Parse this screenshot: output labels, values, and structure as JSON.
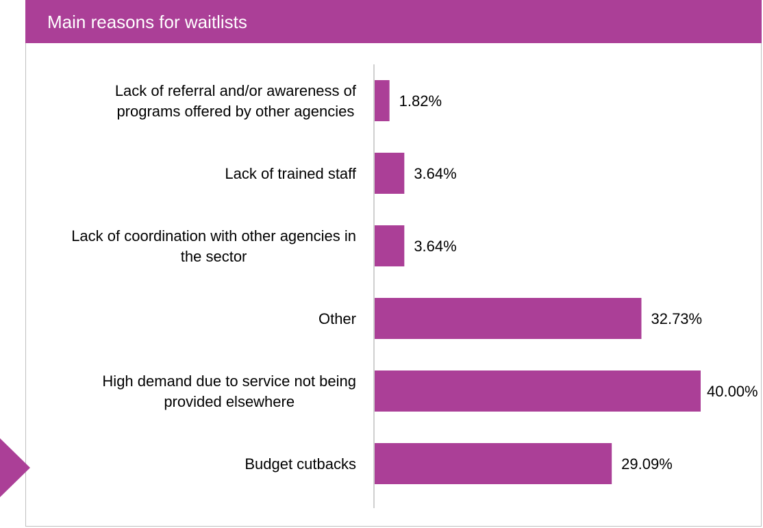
{
  "header": {
    "title": "Main reasons for waitlists"
  },
  "colors": {
    "accent": "#ab3f97",
    "bar": "#ab3f97",
    "axis": "#bfbfbf"
  },
  "chart_data": {
    "type": "bar",
    "orientation": "horizontal",
    "title": "Main reasons for waitlists",
    "categories": [
      [
        "Lack of referral and/or awareness of",
        "programs offered by other agencies"
      ],
      [
        "Lack of trained staff"
      ],
      [
        "Lack of coordination with other agencies in",
        "the sector"
      ],
      [
        "Other"
      ],
      [
        "High demand due to service not being",
        "provided elsewhere"
      ],
      [
        "Budget cutbacks"
      ]
    ],
    "values": [
      1.82,
      3.64,
      3.64,
      32.73,
      40.0,
      29.09
    ],
    "value_labels": [
      "1.82%",
      "3.64%",
      "3.64%",
      "32.73%",
      "40.00%",
      "29.09%"
    ],
    "xlim": [
      0,
      40
    ],
    "grid": false,
    "legend": "none"
  }
}
